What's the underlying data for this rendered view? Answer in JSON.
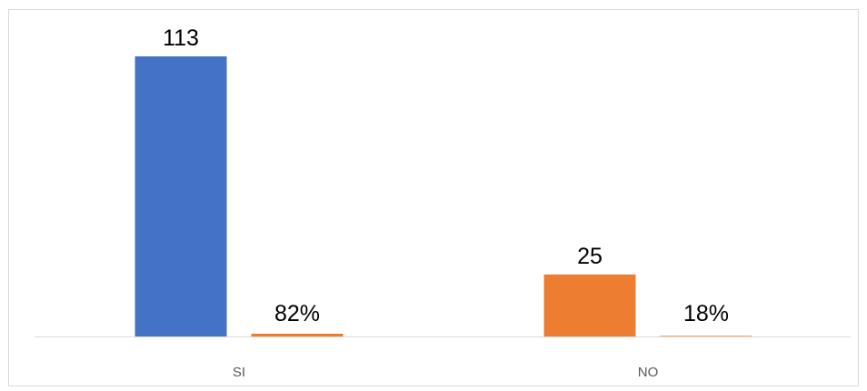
{
  "chart_data": {
    "type": "bar",
    "categories": [
      "SI",
      "NO"
    ],
    "series": [
      {
        "values": [
          113,
          25
        ],
        "color_by_category": [
          "#4472C4",
          "#ED7D31"
        ]
      },
      {
        "values": [
          0.82,
          0.18
        ],
        "labels": [
          "82%",
          "18%"
        ],
        "color": "#ED7D31"
      }
    ],
    "value_labels": [
      "113",
      "25"
    ],
    "percent_labels": [
      "82%",
      "18%"
    ],
    "ylim": [
      0,
      120
    ],
    "grid": false,
    "legend": "none",
    "title": "",
    "xlabel": "",
    "ylabel": ""
  }
}
